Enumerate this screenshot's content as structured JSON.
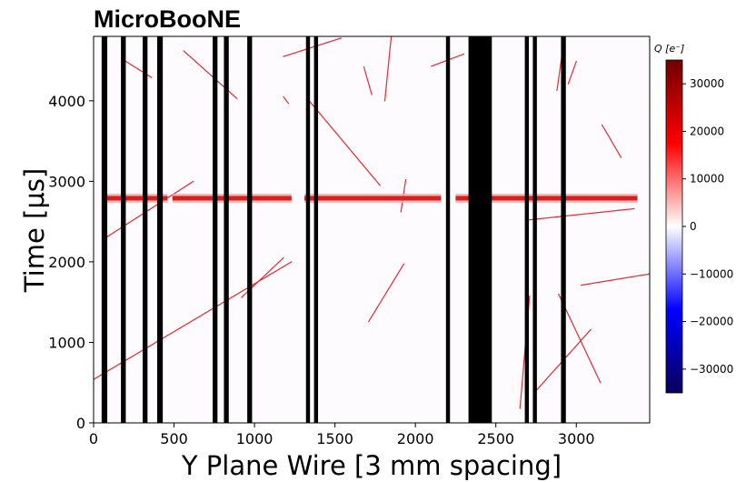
{
  "chart_data": {
    "type": "heatmap",
    "title": "MicroBooNE",
    "xlabel": "Y Plane Wire [3 mm spacing]",
    "ylabel": "Time [μs]",
    "xlim": [
      0,
      3456
    ],
    "ylim": [
      0,
      4800
    ],
    "xticks": [
      "0",
      "500",
      "1000",
      "1500",
      "2000",
      "2500",
      "3000"
    ],
    "yticks": [
      "0",
      "1000",
      "2000",
      "3000",
      "4000"
    ],
    "colorbar": {
      "label": "Q [e⁻]",
      "range": [
        -35000,
        35000
      ],
      "ticks": [
        "30000",
        "20000",
        "10000",
        "0",
        "−10000",
        "−20000",
        "−30000"
      ],
      "colormap": [
        "#08005a",
        "#0000ff",
        "#ffffff",
        "#ff0000",
        "#700000"
      ]
    },
    "dead_wire_bands": [
      [
        50,
        85
      ],
      [
        170,
        200
      ],
      [
        305,
        335
      ],
      [
        395,
        430
      ],
      [
        740,
        770
      ],
      [
        810,
        840
      ],
      [
        955,
        985
      ],
      [
        1320,
        1345
      ],
      [
        1370,
        1395
      ],
      [
        2190,
        2215
      ],
      [
        2330,
        2475
      ],
      [
        2680,
        2705
      ],
      [
        2730,
        2755
      ],
      [
        2905,
        2935
      ]
    ],
    "cosmic_tracks": [
      [
        [
          60,
          2280
        ],
        [
          620,
          3000
        ]
      ],
      [
        [
          0,
          540
        ],
        [
          1230,
          2000
        ]
      ],
      [
        [
          200,
          4490
        ],
        [
          360,
          4290
        ]
      ],
      [
        [
          560,
          4620
        ],
        [
          890,
          4030
        ]
      ],
      [
        [
          1180,
          4050
        ],
        [
          1210,
          3970
        ]
      ],
      [
        [
          1340,
          4000
        ],
        [
          1780,
          2950
        ]
      ],
      [
        [
          1180,
          4550
        ],
        [
          1540,
          4780
        ]
      ],
      [
        [
          1680,
          4420
        ],
        [
          1730,
          4070
        ]
      ],
      [
        [
          1810,
          4000
        ],
        [
          1850,
          4800
        ]
      ],
      [
        [
          2100,
          4430
        ],
        [
          2300,
          4580
        ]
      ],
      [
        [
          2880,
          4130
        ],
        [
          2920,
          4700
        ]
      ],
      [
        [
          3160,
          3700
        ],
        [
          3280,
          3290
        ]
      ],
      [
        [
          2700,
          2520
        ],
        [
          3360,
          2660
        ]
      ],
      [
        [
          2890,
          1600
        ],
        [
          3150,
          500
        ]
      ],
      [
        [
          2750,
          400
        ],
        [
          3090,
          1160
        ]
      ],
      [
        [
          2650,
          180
        ],
        [
          2710,
          1580
        ]
      ],
      [
        [
          1710,
          1260
        ],
        [
          1930,
          1980
        ]
      ],
      [
        [
          1910,
          2620
        ],
        [
          1940,
          3020
        ]
      ],
      [
        [
          3030,
          1710
        ],
        [
          3456,
          1850
        ]
      ],
      [
        [
          920,
          1560
        ],
        [
          1180,
          2050
        ]
      ],
      [
        [
          2950,
          4210
        ],
        [
          3000,
          4490
        ]
      ]
    ],
    "charge_band": {
      "time": 2790,
      "segments": [
        [
          80,
          460
        ],
        [
          490,
          1230
        ],
        [
          1310,
          2160
        ],
        [
          2250,
          3380
        ]
      ]
    }
  }
}
